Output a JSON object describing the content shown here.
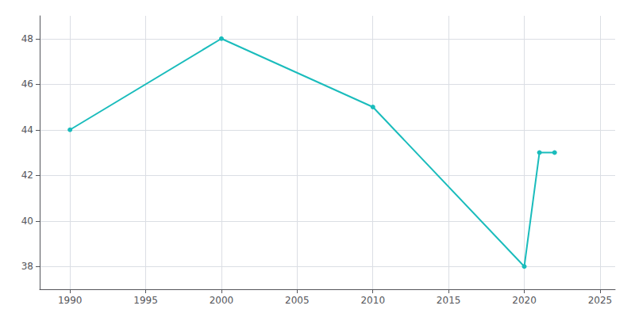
{
  "chart_data": {
    "type": "line",
    "x": [
      1990,
      2000,
      2010,
      2020,
      2021,
      2022
    ],
    "values": [
      44,
      48,
      45,
      38,
      43,
      43
    ],
    "color": "#1ABCBC",
    "marker": "circle",
    "xlim": [
      1988,
      2026
    ],
    "ylim": [
      37.0,
      49.0
    ],
    "xticks": [
      1990,
      1995,
      2000,
      2005,
      2010,
      2015,
      2020,
      2025
    ],
    "yticks": [
      38,
      40,
      42,
      44,
      46,
      48
    ],
    "grid": true
  }
}
